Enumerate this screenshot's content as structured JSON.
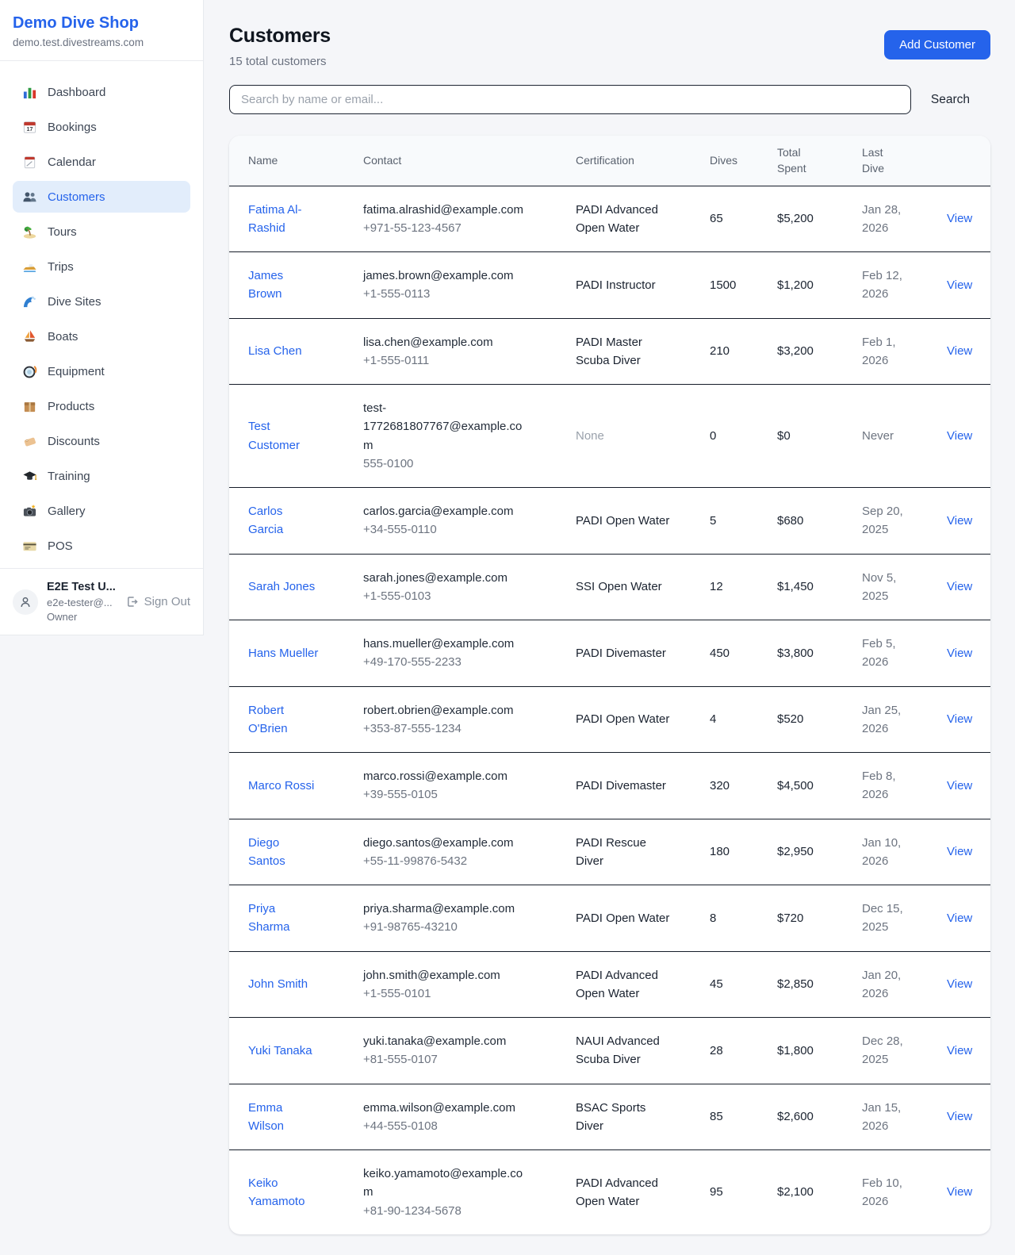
{
  "sidebar": {
    "shop_name": "Demo Dive Shop",
    "shop_domain": "demo.test.divestreams.com",
    "items": [
      {
        "icon": "bar-chart",
        "label": "Dashboard",
        "active": false
      },
      {
        "icon": "calendar-date",
        "label": "Bookings",
        "active": false
      },
      {
        "icon": "tear-calendar",
        "label": "Calendar",
        "active": false
      },
      {
        "icon": "people",
        "label": "Customers",
        "active": true
      },
      {
        "icon": "island",
        "label": "Tours",
        "active": false
      },
      {
        "icon": "speedboat",
        "label": "Trips",
        "active": false
      },
      {
        "icon": "wave",
        "label": "Dive Sites",
        "active": false
      },
      {
        "icon": "sailboat",
        "label": "Boats",
        "active": false
      },
      {
        "icon": "dive-mask",
        "label": "Equipment",
        "active": false
      },
      {
        "icon": "package",
        "label": "Products",
        "active": false
      },
      {
        "icon": "tag",
        "label": "Discounts",
        "active": false
      },
      {
        "icon": "grad-cap",
        "label": "Training",
        "active": false
      },
      {
        "icon": "camera",
        "label": "Gallery",
        "active": false
      },
      {
        "icon": "credit-card",
        "label": "POS",
        "active": false
      }
    ],
    "user": {
      "name": "E2E Test U...",
      "email": "e2e-tester@...",
      "role": "Owner",
      "sign_out_label": "Sign Out"
    }
  },
  "header": {
    "title": "Customers",
    "subtitle": "15 total customers",
    "add_button_label": "Add Customer"
  },
  "search": {
    "placeholder": "Search by name or email...",
    "button_label": "Search"
  },
  "table": {
    "columns": [
      "Name",
      "Contact",
      "Certification",
      "Dives",
      "Total Spent",
      "Last Dive",
      ""
    ],
    "view_label": "View",
    "customers": [
      {
        "name": "Fatima Al-Rashid",
        "email": "fatima.alrashid@example.com",
        "phone": "+971-55-123-4567",
        "certification": "PADI Advanced Open Water",
        "dives": "65",
        "total_spent": "$5,200",
        "last_dive": "Jan 28, 2026"
      },
      {
        "name": "James Brown",
        "email": "james.brown@example.com",
        "phone": "+1-555-0113",
        "certification": "PADI Instructor",
        "dives": "1500",
        "total_spent": "$1,200",
        "last_dive": "Feb 12, 2026"
      },
      {
        "name": "Lisa Chen",
        "email": "lisa.chen@example.com",
        "phone": "+1-555-0111",
        "certification": "PADI Master Scuba Diver",
        "dives": "210",
        "total_spent": "$3,200",
        "last_dive": "Feb 1, 2026"
      },
      {
        "name": "Test Customer",
        "email": "test-1772681807767@example.com",
        "phone": "555-0100",
        "certification": "None",
        "dives": "0",
        "total_spent": "$0",
        "last_dive": "Never"
      },
      {
        "name": "Carlos Garcia",
        "email": "carlos.garcia@example.com",
        "phone": "+34-555-0110",
        "certification": "PADI Open Water",
        "dives": "5",
        "total_spent": "$680",
        "last_dive": "Sep 20, 2025"
      },
      {
        "name": "Sarah Jones",
        "email": "sarah.jones@example.com",
        "phone": "+1-555-0103",
        "certification": "SSI Open Water",
        "dives": "12",
        "total_spent": "$1,450",
        "last_dive": "Nov 5, 2025"
      },
      {
        "name": "Hans Mueller",
        "email": "hans.mueller@example.com",
        "phone": "+49-170-555-2233",
        "certification": "PADI Divemaster",
        "dives": "450",
        "total_spent": "$3,800",
        "last_dive": "Feb 5, 2026"
      },
      {
        "name": "Robert O'Brien",
        "email": "robert.obrien@example.com",
        "phone": "+353-87-555-1234",
        "certification": "PADI Open Water",
        "dives": "4",
        "total_spent": "$520",
        "last_dive": "Jan 25, 2026"
      },
      {
        "name": "Marco Rossi",
        "email": "marco.rossi@example.com",
        "phone": "+39-555-0105",
        "certification": "PADI Divemaster",
        "dives": "320",
        "total_spent": "$4,500",
        "last_dive": "Feb 8, 2026"
      },
      {
        "name": "Diego Santos",
        "email": "diego.santos@example.com",
        "phone": "+55-11-99876-5432",
        "certification": "PADI Rescue Diver",
        "dives": "180",
        "total_spent": "$2,950",
        "last_dive": "Jan 10, 2026"
      },
      {
        "name": "Priya Sharma",
        "email": "priya.sharma@example.com",
        "phone": "+91-98765-43210",
        "certification": "PADI Open Water",
        "dives": "8",
        "total_spent": "$720",
        "last_dive": "Dec 15, 2025"
      },
      {
        "name": "John Smith",
        "email": "john.smith@example.com",
        "phone": "+1-555-0101",
        "certification": "PADI Advanced Open Water",
        "dives": "45",
        "total_spent": "$2,850",
        "last_dive": "Jan 20, 2026"
      },
      {
        "name": "Yuki Tanaka",
        "email": "yuki.tanaka@example.com",
        "phone": "+81-555-0107",
        "certification": "NAUI Advanced Scuba Diver",
        "dives": "28",
        "total_spent": "$1,800",
        "last_dive": "Dec 28, 2025"
      },
      {
        "name": "Emma Wilson",
        "email": "emma.wilson@example.com",
        "phone": "+44-555-0108",
        "certification": "BSAC Sports Diver",
        "dives": "85",
        "total_spent": "$2,600",
        "last_dive": "Jan 15, 2026"
      },
      {
        "name": "Keiko Yamamoto",
        "email": "keiko.yamamoto@example.com",
        "phone": "+81-90-1234-5678",
        "certification": "PADI Advanced Open Water",
        "dives": "95",
        "total_spent": "$2,100",
        "last_dive": "Feb 10, 2026"
      }
    ]
  },
  "colors": {
    "accent": "#2563eb",
    "active_item_bg": "#e2edfb",
    "page_bg": "#f5f6f9",
    "row_border": "#161d29",
    "muted_text": "#6b7280"
  }
}
